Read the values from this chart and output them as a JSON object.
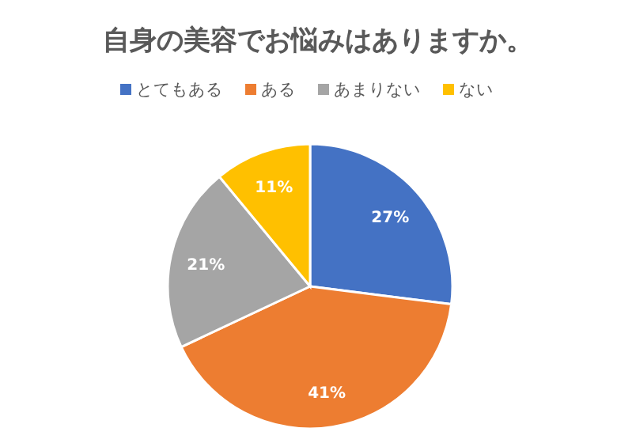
{
  "chart_data": {
    "type": "pie",
    "title": "自身の美容でお悩みはありますか。",
    "categories": [
      "とてもある",
      "ある",
      "あまりない",
      "ない"
    ],
    "values": [
      27,
      41,
      21,
      11
    ],
    "colors": [
      "#4472c4",
      "#ed7d31",
      "#a5a5a5",
      "#ffc000"
    ],
    "value_labels": [
      "27%",
      "41%",
      "21%",
      "11%"
    ],
    "legend": "top"
  }
}
